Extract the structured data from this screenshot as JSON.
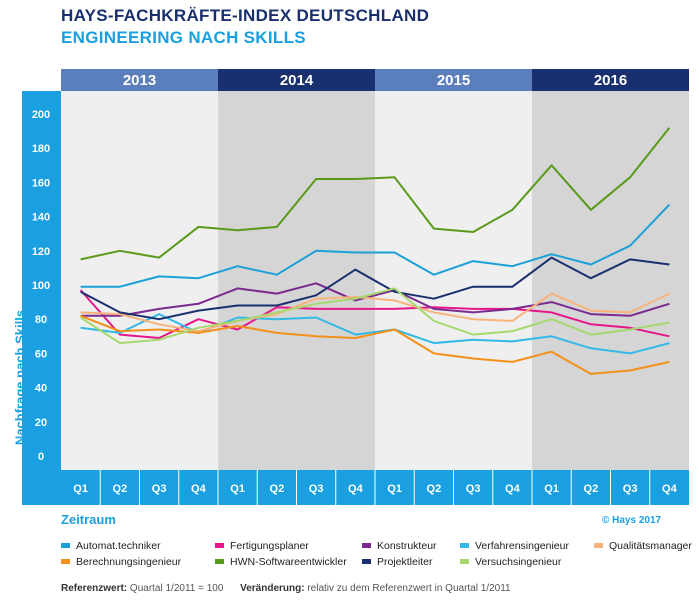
{
  "header": {
    "title": "HAYS-FACHKRÄFTE-INDEX DEUTSCHLAND",
    "subtitle": "ENGINEERING NACH SKILLS"
  },
  "chart_data": {
    "type": "line",
    "years": [
      "2013",
      "2014",
      "2015",
      "2016"
    ],
    "categories": [
      "Q1",
      "Q2",
      "Q3",
      "Q4",
      "Q1",
      "Q2",
      "Q3",
      "Q4",
      "Q1",
      "Q2",
      "Q3",
      "Q4",
      "Q1",
      "Q2",
      "Q3",
      "Q4"
    ],
    "ylabel": "Nachfrage nach Skills",
    "xlabel": "Zeitraum",
    "ylim": [
      0,
      200
    ],
    "yticks": [
      0,
      20,
      40,
      60,
      80,
      100,
      120,
      140,
      160,
      180,
      200
    ],
    "series": [
      {
        "name": "Automat.techniker",
        "color": "#1ba0d9",
        "values": [
          99,
          99,
          105,
          104,
          111,
          106,
          120,
          119,
          119,
          106,
          114,
          111,
          118,
          112,
          123,
          147
        ]
      },
      {
        "name": "Fertigungsplaner",
        "color": "#e6168b",
        "values": [
          97,
          71,
          69,
          80,
          74,
          87,
          86,
          86,
          86,
          87,
          86,
          86,
          84,
          77,
          75,
          70
        ]
      },
      {
        "name": "Konstrukteur",
        "color": "#7b2a8f",
        "values": [
          82,
          82,
          86,
          89,
          98,
          95,
          101,
          91,
          97,
          86,
          84,
          86,
          90,
          83,
          82,
          89
        ]
      },
      {
        "name": "Verfahrensingenieur",
        "color": "#33b9e6",
        "values": [
          75,
          72,
          83,
          72,
          81,
          80,
          81,
          71,
          74,
          66,
          68,
          67,
          70,
          63,
          60,
          66
        ]
      },
      {
        "name": "Qualitätsmanager",
        "color": "#f7b37a",
        "values": [
          84,
          83,
          77,
          73,
          79,
          83,
          92,
          93,
          91,
          84,
          80,
          79,
          95,
          85,
          84,
          95
        ]
      },
      {
        "name": "Berechnungsingenieur",
        "color": "#f39019",
        "values": [
          82,
          73,
          74,
          72,
          76,
          72,
          70,
          69,
          74,
          60,
          57,
          55,
          61,
          48,
          50,
          55
        ]
      },
      {
        "name": "HWN-Softwareentwickler",
        "color": "#5a9a1b",
        "values": [
          115,
          120,
          116,
          134,
          132,
          134,
          162,
          162,
          163,
          133,
          131,
          144,
          170,
          144,
          163,
          192
        ]
      },
      {
        "name": "Projektleiter",
        "color": "#1a2f6e",
        "values": [
          96,
          84,
          80,
          85,
          88,
          88,
          94,
          109,
          96,
          92,
          99,
          99,
          116,
          104,
          115,
          112
        ]
      },
      {
        "name": "Versuchsingenieur",
        "color": "#a6d86f",
        "values": [
          81,
          66,
          68,
          75,
          79,
          84,
          89,
          92,
          98,
          79,
          71,
          73,
          80,
          71,
          74,
          78
        ]
      }
    ]
  },
  "footer": {
    "zeitraum": "Zeitraum",
    "copyright": "© Hays 2017",
    "ref_label": "Referenzwert:",
    "ref_text": "Quartal 1/2011 = 100",
    "change_label": "Veränderung:",
    "change_text": "relativ zu dem Referenzwert in Quartal 1/2011"
  }
}
